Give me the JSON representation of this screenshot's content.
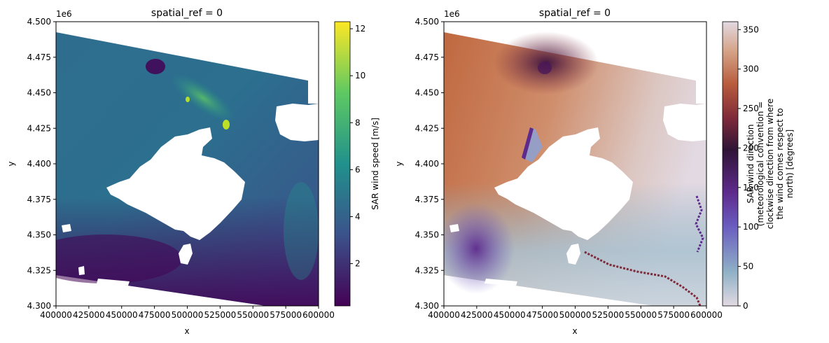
{
  "chart_data": [
    {
      "type": "heatmap",
      "title": "spatial_ref = 0",
      "xlabel": "x",
      "ylabel": "y",
      "offset_label": "1e6",
      "xlim": [
        400000,
        600000
      ],
      "ylim": [
        4.3,
        4.5
      ],
      "x_ticks": [
        "400000",
        "425000",
        "450000",
        "475000",
        "500000",
        "525000",
        "550000",
        "575000",
        "600000"
      ],
      "y_ticks": [
        "4.300",
        "4.325",
        "4.350",
        "4.375",
        "4.400",
        "4.425",
        "4.450",
        "4.475",
        "4.500"
      ],
      "colorbar": {
        "label": "SAR wind speed [m/s]",
        "colormap": "viridis",
        "range": [
          0.2,
          12.3
        ],
        "ticks": [
          "2",
          "4",
          "6",
          "8",
          "10",
          "12"
        ]
      },
      "colors": [
        "#440154",
        "#3b528b",
        "#21918c",
        "#5ec962",
        "#fde725"
      ]
    },
    {
      "type": "heatmap",
      "title": "spatial_ref = 0",
      "xlabel": "x",
      "ylabel": "y",
      "offset_label": "1e6",
      "xlim": [
        400000,
        600000
      ],
      "ylim": [
        4.3,
        4.5
      ],
      "x_ticks": [
        "400000",
        "425000",
        "450000",
        "475000",
        "500000",
        "525000",
        "550000",
        "575000",
        "600000"
      ],
      "y_ticks": [
        "4.300",
        "4.325",
        "4.350",
        "4.375",
        "4.400",
        "4.425",
        "4.450",
        "4.475",
        "4.500"
      ],
      "colorbar": {
        "label_lines": [
          "SAR wind direction",
          "(meteorological convention =",
          "clockwise direction from where",
          "the wind comes respect to",
          "north) [degrees]"
        ],
        "colormap": "twilight",
        "range": [
          0,
          360
        ],
        "ticks": [
          "0",
          "50",
          "100",
          "150",
          "200",
          "250",
          "300",
          "350"
        ]
      },
      "colors": [
        "#e2d9e2",
        "#8fb1c6",
        "#6a5cc0",
        "#5e2a8c",
        "#2f1436",
        "#7e2a3a",
        "#b85c3c",
        "#d6a58a",
        "#e2d9e2"
      ]
    }
  ]
}
